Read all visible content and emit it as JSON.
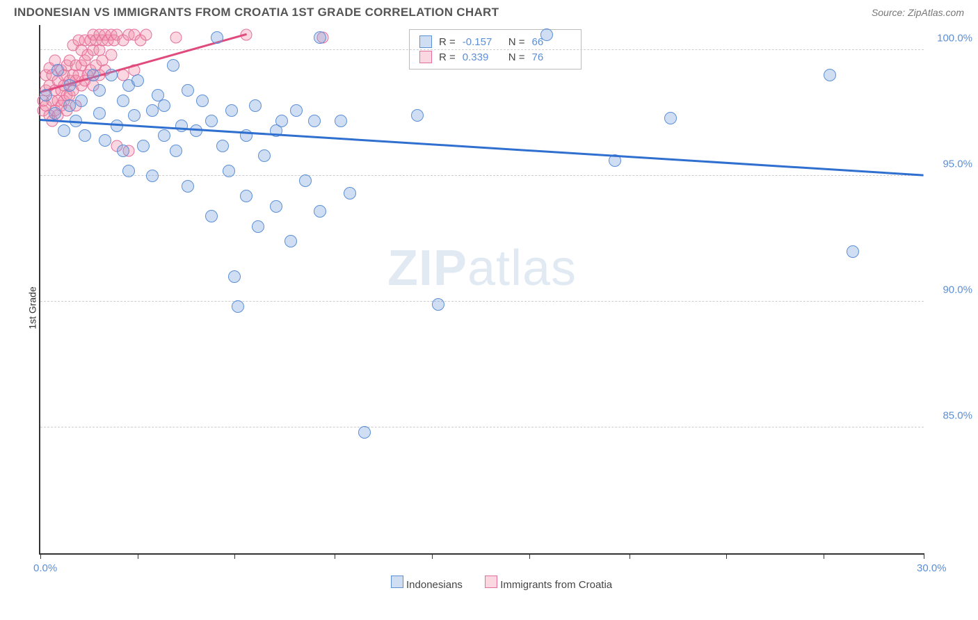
{
  "title": "INDONESIAN VS IMMIGRANTS FROM CROATIA 1ST GRADE CORRELATION CHART",
  "source": "Source: ZipAtlas.com",
  "axes": {
    "ylabel": "1st Grade",
    "xlim": [
      0,
      30
    ],
    "ylim": [
      80,
      101
    ],
    "xticks": [
      0,
      3.3,
      6.6,
      10,
      13.3,
      16.6,
      20,
      23.3,
      26.6,
      30
    ],
    "xtick_labels": {
      "0": "0.0%",
      "30": "30.0%"
    },
    "yticks": [
      85,
      90,
      95,
      100
    ],
    "ytick_labels": {
      "85": "85.0%",
      "90": "90.0%",
      "95": "95.0%",
      "100": "100.0%"
    }
  },
  "grid_color": "#cccccc",
  "series": {
    "blue": {
      "label": "Indonesians",
      "color_fill": "rgba(120,160,220,0.35)",
      "color_stroke": "#5b8fd6",
      "trend": {
        "x1": 0,
        "y1": 97.2,
        "x2": 30,
        "y2": 95.0,
        "color": "#2f6fd0"
      },
      "stat": {
        "R": "-0.157",
        "N": "66"
      },
      "points": [
        [
          0.2,
          98.2
        ],
        [
          0.5,
          97.5
        ],
        [
          0.6,
          99.2
        ],
        [
          0.8,
          96.8
        ],
        [
          1.0,
          97.8
        ],
        [
          1.0,
          98.6
        ],
        [
          1.2,
          97.2
        ],
        [
          1.4,
          98.0
        ],
        [
          1.5,
          96.6
        ],
        [
          1.8,
          99.0
        ],
        [
          2.0,
          97.5
        ],
        [
          2.0,
          98.4
        ],
        [
          2.2,
          96.4
        ],
        [
          2.4,
          99.0
        ],
        [
          2.6,
          97.0
        ],
        [
          2.8,
          98.0
        ],
        [
          2.8,
          96.0
        ],
        [
          3.0,
          98.6
        ],
        [
          3.0,
          95.2
        ],
        [
          3.2,
          97.4
        ],
        [
          3.3,
          98.8
        ],
        [
          3.5,
          96.2
        ],
        [
          3.8,
          97.6
        ],
        [
          3.8,
          95.0
        ],
        [
          4.0,
          98.2
        ],
        [
          4.2,
          96.6
        ],
        [
          4.2,
          97.8
        ],
        [
          4.5,
          99.4
        ],
        [
          4.6,
          96.0
        ],
        [
          4.8,
          97.0
        ],
        [
          5.0,
          98.4
        ],
        [
          5.0,
          94.6
        ],
        [
          5.3,
          96.8
        ],
        [
          5.5,
          98.0
        ],
        [
          5.8,
          97.2
        ],
        [
          5.8,
          93.4
        ],
        [
          6.0,
          100.5
        ],
        [
          6.2,
          96.2
        ],
        [
          6.4,
          95.2
        ],
        [
          6.5,
          97.6
        ],
        [
          6.6,
          91.0
        ],
        [
          6.7,
          89.8
        ],
        [
          7.0,
          96.6
        ],
        [
          7.0,
          94.2
        ],
        [
          7.3,
          97.8
        ],
        [
          7.4,
          93.0
        ],
        [
          7.6,
          95.8
        ],
        [
          8.0,
          96.8
        ],
        [
          8.0,
          93.8
        ],
        [
          8.2,
          97.2
        ],
        [
          8.5,
          92.4
        ],
        [
          8.7,
          97.6
        ],
        [
          9.0,
          94.8
        ],
        [
          9.3,
          97.2
        ],
        [
          9.5,
          100.5
        ],
        [
          9.5,
          93.6
        ],
        [
          10.2,
          97.2
        ],
        [
          10.5,
          94.3
        ],
        [
          11.0,
          84.8
        ],
        [
          12.8,
          97.4
        ],
        [
          13.5,
          89.9
        ],
        [
          17.2,
          100.6
        ],
        [
          19.5,
          95.6
        ],
        [
          21.4,
          97.3
        ],
        [
          26.8,
          99.0
        ],
        [
          27.6,
          92.0
        ]
      ]
    },
    "pink": {
      "label": "Immigrants from Croatia",
      "color_fill": "rgba(240,140,170,0.35)",
      "color_stroke": "#e36f9a",
      "trend": {
        "x1": 0,
        "y1": 98.3,
        "x2": 7.0,
        "y2": 100.6,
        "color": "#e04a7c"
      },
      "stat": {
        "R": "0.339",
        "N": "76"
      },
      "points": [
        [
          0.1,
          97.6
        ],
        [
          0.1,
          98.0
        ],
        [
          0.2,
          98.4
        ],
        [
          0.2,
          97.8
        ],
        [
          0.2,
          99.0
        ],
        [
          0.3,
          97.4
        ],
        [
          0.3,
          98.6
        ],
        [
          0.3,
          99.3
        ],
        [
          0.4,
          98.0
        ],
        [
          0.4,
          97.2
        ],
        [
          0.4,
          99.0
        ],
        [
          0.5,
          98.4
        ],
        [
          0.5,
          97.6
        ],
        [
          0.5,
          99.6
        ],
        [
          0.6,
          98.8
        ],
        [
          0.6,
          98.0
        ],
        [
          0.6,
          97.4
        ],
        [
          0.7,
          99.2
        ],
        [
          0.7,
          98.4
        ],
        [
          0.7,
          97.8
        ],
        [
          0.8,
          98.0
        ],
        [
          0.8,
          99.0
        ],
        [
          0.8,
          98.6
        ],
        [
          0.9,
          99.4
        ],
        [
          0.9,
          98.2
        ],
        [
          0.9,
          97.6
        ],
        [
          1.0,
          98.8
        ],
        [
          1.0,
          99.6
        ],
        [
          1.0,
          98.2
        ],
        [
          1.1,
          99.0
        ],
        [
          1.1,
          98.4
        ],
        [
          1.1,
          100.2
        ],
        [
          1.2,
          98.8
        ],
        [
          1.2,
          99.4
        ],
        [
          1.2,
          97.8
        ],
        [
          1.3,
          99.0
        ],
        [
          1.3,
          100.4
        ],
        [
          1.4,
          98.6
        ],
        [
          1.4,
          99.4
        ],
        [
          1.4,
          100.0
        ],
        [
          1.5,
          98.8
        ],
        [
          1.5,
          99.6
        ],
        [
          1.5,
          100.4
        ],
        [
          1.6,
          99.0
        ],
        [
          1.6,
          99.8
        ],
        [
          1.7,
          100.4
        ],
        [
          1.7,
          99.2
        ],
        [
          1.8,
          98.6
        ],
        [
          1.8,
          100.0
        ],
        [
          1.8,
          100.6
        ],
        [
          1.9,
          99.4
        ],
        [
          1.9,
          100.4
        ],
        [
          2.0,
          99.0
        ],
        [
          2.0,
          100.0
        ],
        [
          2.0,
          100.6
        ],
        [
          2.1,
          99.6
        ],
        [
          2.1,
          100.4
        ],
        [
          2.2,
          100.6
        ],
        [
          2.2,
          99.2
        ],
        [
          2.3,
          100.4
        ],
        [
          2.4,
          100.6
        ],
        [
          2.4,
          99.8
        ],
        [
          2.5,
          100.4
        ],
        [
          2.6,
          100.6
        ],
        [
          2.6,
          96.2
        ],
        [
          2.8,
          100.4
        ],
        [
          2.8,
          99.0
        ],
        [
          3.0,
          100.6
        ],
        [
          3.0,
          96.0
        ],
        [
          3.2,
          100.6
        ],
        [
          3.2,
          99.2
        ],
        [
          3.4,
          100.4
        ],
        [
          3.6,
          100.6
        ],
        [
          4.6,
          100.5
        ],
        [
          7.0,
          100.6
        ],
        [
          9.6,
          100.5
        ]
      ]
    }
  },
  "watermark": {
    "zip": "ZIP",
    "rest": "atlas"
  },
  "legend_bottom": [
    {
      "swatch": "blue",
      "label": "Indonesians"
    },
    {
      "swatch": "pink",
      "label": "Immigrants from Croatia"
    }
  ]
}
